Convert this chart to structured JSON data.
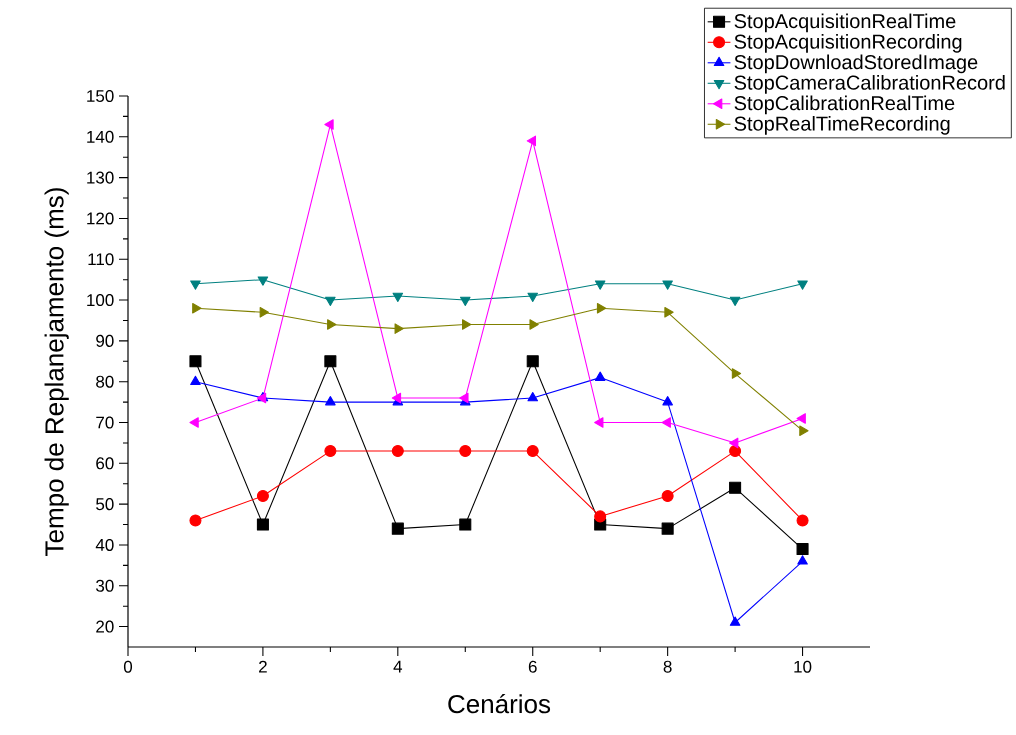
{
  "chart_data": {
    "type": "line",
    "xlabel": "Cenários",
    "ylabel": "Tempo de Replanejamento (ms)",
    "x": [
      1,
      2,
      3,
      4,
      5,
      6,
      7,
      8,
      9,
      10
    ],
    "xlim": [
      0,
      11
    ],
    "xticks": [
      0,
      2,
      4,
      6,
      8,
      10
    ],
    "ylim": [
      15,
      150
    ],
    "yticks": [
      20,
      30,
      40,
      50,
      60,
      70,
      80,
      90,
      100,
      110,
      120,
      130,
      140,
      150
    ],
    "grid": false,
    "legend": "top right",
    "line_style": "solid",
    "series": [
      {
        "name": "StopAcquisitionRealTime",
        "color": "#000000",
        "marker": "square",
        "values": [
          85,
          45,
          85,
          44,
          45,
          85,
          45,
          44,
          54,
          39
        ]
      },
      {
        "name": "StopAcquisitionRecording",
        "color": "#ff0000",
        "marker": "circle",
        "values": [
          46,
          52,
          63,
          63,
          63,
          63,
          47,
          52,
          63,
          46
        ]
      },
      {
        "name": "StopDownloadStoredImage",
        "color": "#0000ff",
        "marker": "triangle",
        "values": [
          80,
          76,
          75,
          75,
          75,
          76,
          81,
          75,
          21,
          36
        ]
      },
      {
        "name": "StopCameraCalibrationRecord",
        "color": "#008080",
        "marker": "triangle down",
        "values": [
          104,
          105,
          100,
          101,
          100,
          101,
          104,
          104,
          100,
          104
        ]
      },
      {
        "name": "StopCalibrationRealTime",
        "color": "#ff00ff",
        "marker": "triangle left",
        "values": [
          70,
          76,
          143,
          76,
          76,
          139,
          70,
          70,
          65,
          71
        ]
      },
      {
        "name": "StopRealTimeRecording",
        "color": "#808000",
        "marker": "triangle right",
        "values": [
          98,
          97,
          94,
          93,
          94,
          94,
          98,
          97,
          82,
          68
        ]
      }
    ]
  }
}
